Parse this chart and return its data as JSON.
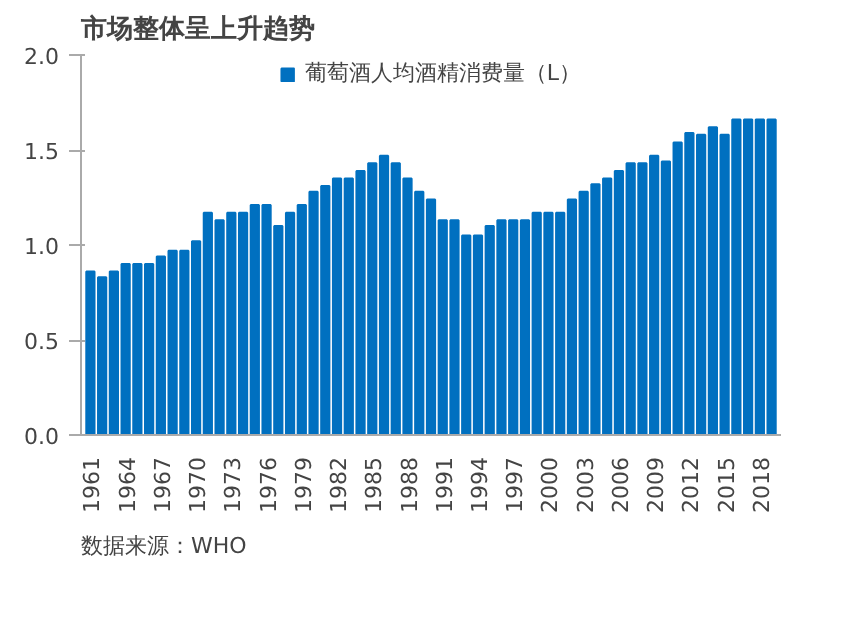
{
  "chart_data": {
    "type": "bar",
    "title": "市场整体呈上升趋势",
    "categories": [
      "1961",
      null,
      null,
      "1964",
      null,
      null,
      "1967",
      null,
      null,
      "1970",
      null,
      null,
      "1973",
      null,
      null,
      "1976",
      null,
      null,
      "1979",
      null,
      null,
      "1982",
      null,
      null,
      "1985",
      null,
      null,
      "1988",
      null,
      null,
      "1991",
      null,
      null,
      "1994",
      null,
      null,
      "1997",
      null,
      null,
      "2000",
      null,
      null,
      "2003",
      null,
      null,
      "2006",
      null,
      null,
      "2009",
      null,
      null,
      "2012",
      null,
      null,
      "2015",
      null,
      null,
      "2018",
      null
    ],
    "series": [
      {
        "name": "葡萄酒人均酒精消费量（L）",
        "color": "#0070c0",
        "values": [
          0.86,
          0.83,
          0.86,
          0.9,
          0.9,
          0.9,
          0.94,
          0.97,
          0.97,
          1.02,
          1.17,
          1.13,
          1.17,
          1.17,
          1.21,
          1.21,
          1.1,
          1.17,
          1.21,
          1.28,
          1.31,
          1.35,
          1.35,
          1.39,
          1.43,
          1.47,
          1.43,
          1.35,
          1.28,
          1.24,
          1.13,
          1.13,
          1.05,
          1.05,
          1.1,
          1.13,
          1.13,
          1.13,
          1.17,
          1.17,
          1.17,
          1.24,
          1.28,
          1.32,
          1.35,
          1.39,
          1.43,
          1.43,
          1.47,
          1.44,
          1.54,
          1.59,
          1.58,
          1.62,
          1.58,
          1.66,
          1.66,
          1.66,
          1.66
        ]
      }
    ],
    "ylim": [
      0,
      2
    ],
    "yticks": [
      {
        "value": 0,
        "label": "0.0"
      },
      {
        "value": 0.5,
        "label": "0.5"
      },
      {
        "value": 1,
        "label": "1.0"
      },
      {
        "value": 1.5,
        "label": "1.5"
      },
      {
        "value": 2,
        "label": "2.0"
      }
    ],
    "grid": false,
    "legend": "top",
    "annotations": [
      "数据来源：WHO"
    ]
  }
}
